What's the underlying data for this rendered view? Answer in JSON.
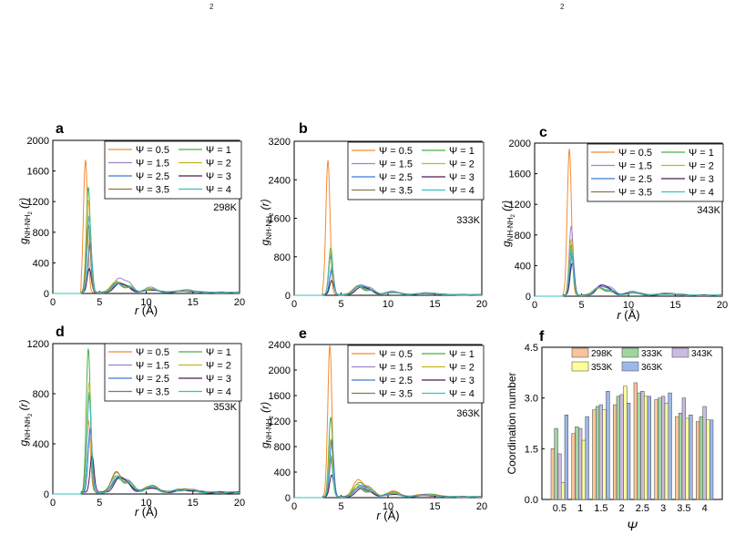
{
  "top_fragments": [
    "",
    "2",
    "",
    "2"
  ],
  "panel_letters": [
    "a",
    "b",
    "c",
    "d",
    "e",
    "f"
  ],
  "colors": {
    "series": [
      "#f28b30",
      "#48b048",
      "#9b86c8",
      "#c8b41e",
      "#3e7ad0",
      "#4a1c56",
      "#8a7a4a",
      "#36c2c2"
    ],
    "bars": [
      "#f9c49b",
      "#9fd59f",
      "#cbbbe2",
      "#ffff99",
      "#9db8e8"
    ]
  },
  "chart_data": [
    {
      "type": "line",
      "panel": "a",
      "ylabel": "g",
      "ylabel_sub": "NH-NH",
      "ylabel_sub_sub": "2",
      "ylabel_paren": "(r)",
      "xlabel": "r (Å)",
      "xlim": [
        0,
        20
      ],
      "ylim": [
        0,
        2000
      ],
      "xticks": [
        0,
        5,
        10,
        15,
        20
      ],
      "yticks": [
        0,
        400,
        800,
        1200,
        1600,
        2000
      ],
      "temperature": "298K",
      "legend": [
        "Ψ = 0.5",
        "Ψ = 1",
        "Ψ = 1.5",
        "Ψ = 2",
        "Ψ = 2.5",
        "Ψ = 3",
        "Ψ = 3.5",
        "Ψ = 4"
      ],
      "peaks": [
        1740,
        1380,
        1000,
        1200,
        650,
        320,
        900,
        1000
      ],
      "peak_r": [
        3.5,
        3.8,
        3.9,
        3.8,
        4.0,
        3.9,
        3.8,
        3.9
      ],
      "second_peak": [
        140,
        130,
        190,
        150,
        110,
        110,
        120,
        120
      ]
    },
    {
      "type": "line",
      "panel": "b",
      "ylabel": "g",
      "ylabel_sub": "NH-NH",
      "ylabel_sub_sub": "2",
      "ylabel_paren": "(r)",
      "xlabel": "",
      "xlim": [
        0,
        20
      ],
      "ylim": [
        0,
        3200
      ],
      "xticks": [
        0,
        5,
        10,
        15,
        20
      ],
      "yticks": [
        0,
        800,
        1600,
        2400,
        3200
      ],
      "temperature": "333K",
      "legend": [
        "Ψ = 0.5",
        "Ψ = 1",
        "Ψ = 1.5",
        "Ψ = 2",
        "Ψ = 2.5",
        "Ψ = 3",
        "Ψ = 3.5",
        "Ψ = 4"
      ],
      "peaks": [
        2800,
        970,
        560,
        920,
        500,
        300,
        800,
        850
      ],
      "peak_r": [
        3.6,
        3.9,
        4.0,
        3.9,
        4.0,
        4.0,
        3.9,
        3.9
      ],
      "second_peak": [
        180,
        170,
        200,
        180,
        190,
        150,
        160,
        170
      ]
    },
    {
      "type": "line",
      "panel": "c",
      "ylabel": "g",
      "ylabel_sub": "NH-NH",
      "ylabel_sub_sub": "2",
      "ylabel_paren": "(r)",
      "xlabel": "r (Å)",
      "xlim": [
        0,
        20
      ],
      "ylim": [
        0,
        2000
      ],
      "xticks": [
        0,
        5,
        10,
        15,
        20
      ],
      "yticks": [
        0,
        400,
        800,
        1200,
        1600,
        2000
      ],
      "temperature": "343K",
      "legend": [
        "Ψ = 0.5",
        "Ψ = 1",
        "Ψ = 1.5",
        "Ψ = 2",
        "Ψ = 2.5",
        "Ψ = 3",
        "Ψ = 3.5",
        "Ψ = 4"
      ],
      "peaks": [
        1920,
        650,
        900,
        720,
        530,
        420,
        560,
        600
      ],
      "peak_r": [
        3.7,
        3.9,
        3.9,
        3.9,
        4.0,
        4.0,
        3.9,
        3.9
      ],
      "second_peak": [
        90,
        100,
        140,
        100,
        110,
        120,
        100,
        100
      ]
    },
    {
      "type": "line",
      "panel": "d",
      "ylabel": "g",
      "ylabel_sub": "NH-NH",
      "ylabel_sub_sub": "2",
      "ylabel_paren": "(r)",
      "xlabel": "r (Å)",
      "xlim": [
        0,
        20
      ],
      "ylim": [
        0,
        1200
      ],
      "xticks": [
        0,
        5,
        10,
        15,
        20
      ],
      "yticks": [
        0,
        400,
        800,
        1200
      ],
      "temperature": "353K",
      "legend": [
        "Ψ = 0.5",
        "Ψ = 1",
        "Ψ = 1.5",
        "Ψ = 2",
        "Ψ = 2.5",
        "Ψ = 3",
        "Ψ = 3.5",
        "Ψ = 4"
      ],
      "peaks": [
        580,
        1150,
        500,
        880,
        500,
        300,
        780,
        800
      ],
      "peak_r": [
        3.8,
        3.8,
        4.0,
        3.9,
        4.0,
        4.2,
        3.9,
        3.9
      ],
      "second_peak": [
        150,
        110,
        130,
        140,
        120,
        110,
        160,
        130
      ]
    },
    {
      "type": "line",
      "panel": "e",
      "ylabel": "g",
      "ylabel_sub": "NH-NH",
      "ylabel_sub_sub": "2",
      "ylabel_paren": "(r)",
      "xlabel": "r (Å)",
      "xlim": [
        0,
        20
      ],
      "ylim": [
        0,
        2400
      ],
      "xticks": [
        0,
        5,
        10,
        15,
        20
      ],
      "yticks": [
        0,
        400,
        800,
        1200,
        1600,
        2000,
        2400
      ],
      "temperature": "363K",
      "legend": [
        "Ψ = 0.5",
        "Ψ = 1",
        "Ψ = 1.5",
        "Ψ = 2",
        "Ψ = 2.5",
        "Ψ = 3",
        "Ψ = 3.5",
        "Ψ = 4"
      ],
      "peaks": [
        2380,
        1250,
        620,
        900,
        880,
        350,
        600,
        650
      ],
      "peak_r": [
        3.8,
        3.9,
        4.0,
        3.9,
        4.0,
        4.0,
        3.9,
        3.9
      ],
      "second_peak": [
        260,
        220,
        160,
        200,
        170,
        120,
        140,
        150
      ]
    },
    {
      "type": "bar",
      "panel": "f",
      "ylabel": "Coordination number",
      "xlabel": "Ψ",
      "categories": [
        "0.5",
        "1",
        "1.5",
        "2",
        "2.5",
        "3",
        "3.5",
        "4"
      ],
      "ylim": [
        0,
        4.5
      ],
      "yticks": [
        "0.0",
        "1.5",
        "3.0",
        "4.5"
      ],
      "series": [
        {
          "name": "298K",
          "values": [
            1.5,
            1.95,
            2.65,
            2.8,
            3.45,
            2.95,
            2.45,
            2.3
          ]
        },
        {
          "name": "333K",
          "values": [
            2.1,
            2.15,
            2.75,
            3.05,
            3.15,
            3.0,
            2.55,
            2.45
          ]
        },
        {
          "name": "343K",
          "values": [
            1.35,
            2.1,
            2.8,
            3.1,
            3.2,
            3.05,
            3.0,
            2.75
          ]
        },
        {
          "name": "353K",
          "values": [
            0.5,
            1.75,
            2.65,
            3.35,
            3.05,
            2.85,
            2.4,
            2.35
          ]
        },
        {
          "name": "363K",
          "values": [
            2.5,
            2.45,
            3.2,
            2.85,
            3.05,
            3.15,
            2.5,
            2.35
          ]
        }
      ]
    }
  ]
}
